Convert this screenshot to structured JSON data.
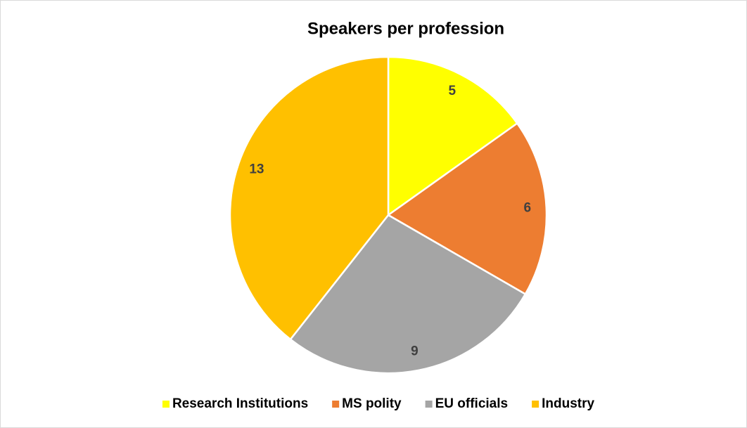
{
  "chart_data": {
    "type": "pie",
    "title": "Speakers per profession",
    "categories": [
      "Research Institutions",
      "MS polity",
      "EU officials",
      "Industry"
    ],
    "values": [
      5,
      6,
      9,
      13
    ],
    "colors": [
      "#FFFF00",
      "#ED7D31",
      "#A5A5A5",
      "#FFC000"
    ],
    "legend": "bottom"
  }
}
